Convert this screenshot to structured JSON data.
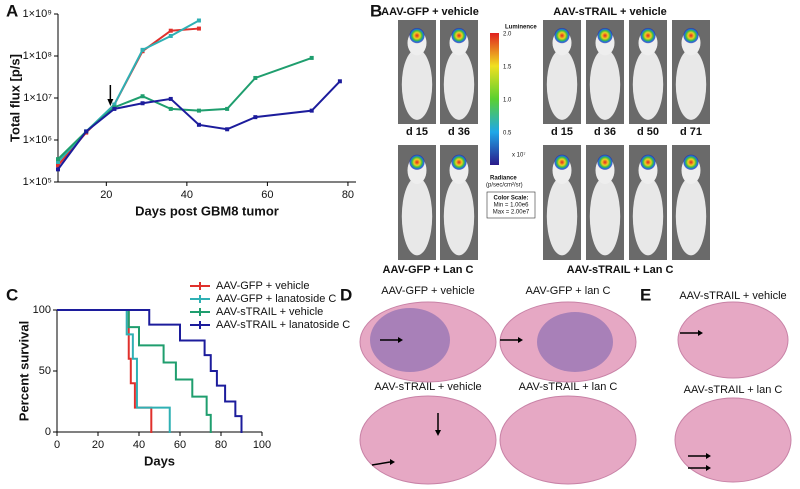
{
  "chart_data": [
    {
      "type": "line",
      "log_y": true,
      "xlabel": "Days post GBM8 tumor",
      "ylabel": "Total flux [p/s]",
      "xlim": [
        8,
        82
      ],
      "xticks": [
        20,
        40,
        60,
        80
      ],
      "ylim": [
        100000,
        1000000000
      ],
      "yticks": [
        {
          "value": 100000,
          "label": "1×10⁵"
        },
        {
          "value": 1000000,
          "label": "1×10⁶"
        },
        {
          "value": 10000000,
          "label": "1×10⁷"
        },
        {
          "value": 100000000,
          "label": "1×10⁸"
        },
        {
          "value": 1000000000,
          "label": "1×10⁹"
        }
      ],
      "series": [
        {
          "color": "#e0302c",
          "x": [
            8,
            15,
            22,
            29,
            36,
            43
          ],
          "values": [
            250000,
            1500000,
            7000000,
            130000000,
            400000000,
            450000000
          ]
        },
        {
          "color": "#2fb0b4",
          "x": [
            8,
            15,
            22,
            29,
            36,
            43
          ],
          "values": [
            300000,
            1600000,
            7000000,
            140000000,
            300000000,
            700000000
          ]
        },
        {
          "color": "#1f9e6e",
          "x": [
            8,
            15,
            22,
            29,
            36,
            43,
            50,
            57,
            71
          ],
          "values": [
            350000,
            1600000,
            6000000,
            11000000,
            5500000,
            5000000,
            5500000,
            30000000,
            90000000
          ]
        },
        {
          "color": "#1c1c9c",
          "x": [
            8,
            15,
            22,
            29,
            36,
            43,
            50,
            57,
            71,
            78
          ],
          "values": [
            200000,
            1600000,
            5500000,
            7500000,
            9500000,
            2300000,
            1800000,
            3500000,
            5000000,
            25000000
          ]
        }
      ]
    },
    {
      "type": "step",
      "xlabel": "Days",
      "ylabel": "Percent survival",
      "xlim": [
        0,
        100
      ],
      "xticks": [
        0,
        20,
        40,
        60,
        80,
        100
      ],
      "ylim": [
        0,
        100
      ],
      "yticks": [
        0,
        50,
        100
      ],
      "series": [
        {
          "name": "AAV-GFP + vehicle",
          "color": "#e0302c",
          "x": [
            0,
            35,
            36,
            38,
            46
          ],
          "values": [
            100,
            60,
            40,
            20,
            0
          ]
        },
        {
          "name": "AAV-GFP + lanatoside C",
          "color": "#2fb0b4",
          "x": [
            0,
            34,
            37,
            39,
            55
          ],
          "values": [
            100,
            80,
            60,
            20,
            0
          ]
        },
        {
          "name": "AAV-sTRAIL + vehicle",
          "color": "#1f9e6e",
          "x": [
            0,
            35,
            40,
            52,
            58,
            66,
            73,
            75
          ],
          "values": [
            100,
            86,
            71,
            57,
            43,
            29,
            14,
            0
          ]
        },
        {
          "name": "AAV-sTRAIL + lanatoside C",
          "color": "#1c1c9c",
          "x": [
            0,
            45,
            60,
            72,
            75,
            78,
            82,
            87,
            90
          ],
          "values": [
            100,
            88,
            75,
            63,
            50,
            38,
            25,
            13,
            0
          ]
        }
      ]
    }
  ],
  "panels": {
    "labels": [
      "A",
      "B",
      "C",
      "D",
      "E"
    ],
    "B": {
      "top_left": "AAV-GFP + vehicle",
      "top_right": "AAV-sTRAIL + vehicle",
      "bottom_left": "AAV-GFP + Lan C",
      "bottom_right": "AAV-sTRAIL + Lan C",
      "days_left": [
        "d 15",
        "d 36"
      ],
      "days_right": [
        "d 15",
        "d 36",
        "d 50",
        "d 71"
      ],
      "colorbar": {
        "title": "Luminence",
        "ticks": [
          "2.0",
          "1.5",
          "1.0",
          "0.5"
        ],
        "unit": "x 10⁷",
        "radiance": "Radiance",
        "radiance_unit": "(p/sec/cm²/sr)",
        "scale": [
          "Color Scale:",
          "Min = 1.00e6",
          "Max = 2.00e7"
        ]
      }
    },
    "D": [
      "AAV-GFP + vehicle",
      "AAV-GFP + lan C",
      "AAV-sTRAIL + vehicle",
      "AAV-sTRAIL + lan C"
    ],
    "E": [
      "AAV-sTRAIL + vehicle",
      "AAV-sTRAIL + lan C"
    ]
  }
}
